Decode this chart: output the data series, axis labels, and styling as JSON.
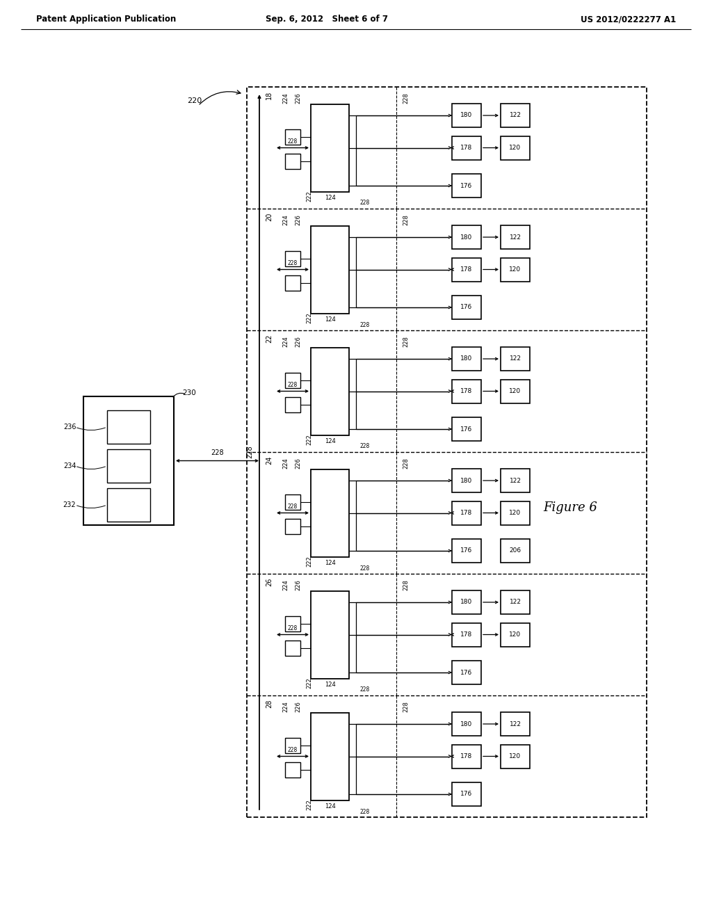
{
  "title_left": "Patent Application Publication",
  "title_center": "Sep. 6, 2012   Sheet 6 of 7",
  "title_right": "US 2012/0222277 A1",
  "figure_label": "Figure 6",
  "bg_color": "#ffffff",
  "num_rows": 6,
  "row_labels": [
    "18",
    "20",
    "22",
    "24",
    "26",
    "28"
  ],
  "special_row": "24",
  "special_label": "206",
  "label_220": "220",
  "label_228": "228",
  "label_230": "230",
  "label_236": "236",
  "label_234": "234",
  "label_232": "232"
}
